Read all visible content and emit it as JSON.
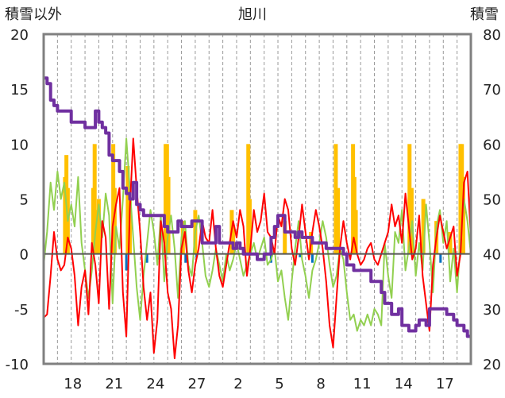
{
  "chart_data": {
    "type": "line",
    "title": "旭川",
    "ylabel_left": "積雪以外",
    "ylabel_right": "積雪",
    "ylim_left": [
      -10,
      20
    ],
    "ylim_right": [
      20,
      80
    ],
    "y_ticks_left": [
      "20",
      "15",
      "10",
      "5",
      "0",
      "-5",
      "-10"
    ],
    "y_ticks_right": [
      "80",
      "70",
      "60",
      "50",
      "40",
      "30",
      "20"
    ],
    "x_tick_labels": [
      "18",
      "21",
      "24",
      "27",
      "2",
      "5",
      "8",
      "11",
      "14",
      "17"
    ],
    "x_tick_days": [
      2,
      5,
      8,
      11,
      14,
      17,
      20,
      23,
      26,
      29
    ],
    "x_range_days": [
      0,
      31
    ],
    "grid": "vertical-dashed-daily",
    "colors": {
      "frame": "#808080",
      "grid": "#9a9a9a",
      "zero": "#555555",
      "red": "#ff0000",
      "green": "#92d050",
      "orange_bars": "#ffc000",
      "blue_bars": "#0070c0",
      "purple": "#7030a0"
    },
    "snow_bars": [
      [
        1.55,
        7
      ],
      [
        1.65,
        9
      ],
      [
        1.75,
        6
      ],
      [
        3.6,
        6
      ],
      [
        3.7,
        10
      ],
      [
        3.8,
        4
      ],
      [
        4.0,
        5
      ],
      [
        5.05,
        10
      ],
      [
        5.15,
        6
      ],
      [
        6.1,
        8
      ],
      [
        6.25,
        5
      ],
      [
        8.85,
        10
      ],
      [
        8.95,
        10
      ],
      [
        9.05,
        7
      ],
      [
        10.1,
        3
      ],
      [
        11.0,
        4
      ],
      [
        13.65,
        4
      ],
      [
        13.75,
        2.5
      ],
      [
        14.85,
        10
      ],
      [
        14.95,
        5
      ],
      [
        17.5,
        3
      ],
      [
        19.4,
        2
      ],
      [
        21.2,
        10
      ],
      [
        21.35,
        6
      ],
      [
        22.45,
        10
      ],
      [
        22.55,
        7
      ],
      [
        22.65,
        4
      ],
      [
        26.55,
        10
      ],
      [
        26.7,
        6
      ],
      [
        27.55,
        5
      ],
      [
        28.5,
        3
      ],
      [
        29.5,
        2
      ],
      [
        30.25,
        10
      ],
      [
        30.35,
        10
      ],
      [
        30.45,
        7
      ]
    ],
    "blue_bars": [
      [
        6.0,
        -1.5
      ],
      [
        7.5,
        -0.8
      ],
      [
        8.4,
        -0.5
      ],
      [
        10.3,
        -0.8
      ],
      [
        11.1,
        -0.3
      ],
      [
        16.5,
        -0.8
      ],
      [
        18.6,
        -0.3
      ],
      [
        19.5,
        -0.8
      ],
      [
        28.8,
        -0.8
      ]
    ],
    "series": [
      {
        "color": "red",
        "x": [
          0.0,
          0.25,
          0.5,
          0.75,
          1.0,
          1.25,
          1.5,
          1.75,
          2.0,
          2.25,
          2.5,
          2.75,
          3.0,
          3.25,
          3.5,
          3.75,
          4.0,
          4.25,
          4.5,
          4.75,
          5.0,
          5.25,
          5.5,
          5.75,
          6.0,
          6.25,
          6.5,
          6.75,
          7.0,
          7.25,
          7.5,
          7.75,
          8.0,
          8.25,
          8.5,
          8.75,
          9.0,
          9.25,
          9.5,
          9.75,
          10.0,
          10.25,
          10.5,
          10.75,
          11.0,
          11.25,
          11.5,
          11.75,
          12.0,
          12.25,
          12.5,
          12.75,
          13.0,
          13.25,
          13.5,
          13.75,
          14.0,
          14.25,
          14.5,
          14.75,
          15.0,
          15.25,
          15.5,
          15.75,
          16.0,
          16.25,
          16.5,
          16.75,
          17.0,
          17.25,
          17.5,
          17.75,
          18.0,
          18.25,
          18.5,
          18.75,
          19.0,
          19.25,
          19.5,
          19.75,
          20.0,
          20.25,
          20.5,
          20.75,
          21.0,
          21.25,
          21.5,
          21.75,
          22.0,
          22.25,
          22.5,
          22.75,
          23.0,
          23.25,
          23.5,
          23.75,
          24.0,
          24.25,
          24.5,
          24.75,
          25.0,
          25.25,
          25.5,
          25.75,
          26.0,
          26.25,
          26.5,
          26.75,
          27.0,
          27.25,
          27.5,
          27.75,
          28.0,
          28.25,
          28.5,
          28.75,
          29.0,
          29.25,
          29.5,
          29.75,
          30.0,
          30.25,
          30.5,
          30.75,
          31.0
        ],
        "values": [
          -5.8,
          -5.5,
          -2.0,
          2.0,
          -0.5,
          -1.5,
          -1.0,
          1.5,
          0.5,
          -2.0,
          -6.5,
          -3.0,
          -1.5,
          -5.5,
          1.0,
          -1.0,
          -4.5,
          3.0,
          1.5,
          -5.0,
          2.5,
          4.5,
          6.0,
          -3.5,
          -7.5,
          4.0,
          10.5,
          6.0,
          2.0,
          -3.0,
          -6.0,
          -3.5,
          -9.0,
          -6.0,
          3.0,
          1.0,
          -3.5,
          -5.0,
          -9.5,
          -6.5,
          0.5,
          2.0,
          -1.5,
          -3.5,
          -1.0,
          0.5,
          3.0,
          1.5,
          1.0,
          4.0,
          0.5,
          -2.0,
          -3.0,
          -1.0,
          1.0,
          3.0,
          1.5,
          4.0,
          2.5,
          -2.0,
          0.5,
          4.0,
          2.0,
          3.0,
          5.5,
          2.0,
          1.5,
          0.0,
          3.5,
          2.5,
          5.0,
          4.0,
          0.5,
          -1.0,
          1.5,
          4.5,
          2.0,
          -0.5,
          2.0,
          4.0,
          2.5,
          0.5,
          -2.5,
          -6.5,
          -8.5,
          -4.0,
          0.5,
          3.0,
          1.0,
          -0.5,
          1.5,
          0.0,
          -1.0,
          -0.5,
          0.5,
          1.0,
          -0.5,
          -1.0,
          0.0,
          1.0,
          2.0,
          4.5,
          2.5,
          3.5,
          1.0,
          5.5,
          2.5,
          -0.5,
          0.5,
          3.5,
          -2.0,
          -4.5,
          -7.0,
          -1.0,
          1.5,
          3.5,
          2.0,
          0.5,
          1.5,
          2.5,
          -2.0,
          0.0,
          6.5,
          7.5,
          1.5
        ]
      },
      {
        "color": "green",
        "x": [
          0.0,
          0.25,
          0.5,
          0.75,
          1.0,
          1.25,
          1.5,
          1.75,
          2.0,
          2.25,
          2.5,
          2.75,
          3.0,
          3.25,
          3.5,
          3.75,
          4.0,
          4.25,
          4.5,
          4.75,
          5.0,
          5.25,
          5.5,
          5.75,
          6.0,
          6.25,
          6.5,
          6.75,
          7.0,
          7.25,
          7.5,
          7.75,
          8.0,
          8.25,
          8.5,
          8.75,
          9.0,
          9.25,
          9.5,
          9.75,
          10.0,
          10.25,
          10.5,
          10.75,
          11.0,
          11.25,
          11.5,
          11.75,
          12.0,
          12.25,
          12.5,
          12.75,
          13.0,
          13.25,
          13.5,
          13.75,
          14.0,
          14.25,
          14.5,
          14.75,
          15.0,
          15.25,
          15.5,
          15.75,
          16.0,
          16.25,
          16.5,
          16.75,
          17.0,
          17.25,
          17.5,
          17.75,
          18.0,
          18.25,
          18.5,
          18.75,
          19.0,
          19.25,
          19.5,
          19.75,
          20.0,
          20.25,
          20.5,
          20.75,
          21.0,
          21.25,
          21.5,
          21.75,
          22.0,
          22.25,
          22.5,
          22.75,
          23.0,
          23.25,
          23.5,
          23.75,
          24.0,
          24.25,
          24.5,
          24.75,
          25.0,
          25.25,
          25.5,
          25.75,
          26.0,
          26.25,
          26.5,
          26.75,
          27.0,
          27.25,
          27.5,
          27.75,
          28.0,
          28.25,
          28.5,
          28.75,
          29.0,
          29.25,
          29.5,
          29.75,
          30.0,
          30.25,
          30.5,
          30.75,
          31.0
        ],
        "values": [
          -1.0,
          2.0,
          6.5,
          4.0,
          7.5,
          5.0,
          6.5,
          3.0,
          4.5,
          2.5,
          7.0,
          1.0,
          -1.5,
          -4.0,
          -1.5,
          2.0,
          4.5,
          1.5,
          5.5,
          3.5,
          -4.5,
          2.5,
          0.5,
          5.0,
          10.5,
          6.0,
          1.5,
          -3.0,
          -6.0,
          -2.0,
          1.0,
          4.0,
          2.0,
          -1.0,
          3.5,
          -2.5,
          1.5,
          3.5,
          0.5,
          -4.0,
          1.5,
          3.0,
          -1.0,
          -2.0,
          2.0,
          3.5,
          1.0,
          -2.0,
          -3.0,
          -1.5,
          0.5,
          -1.0,
          -2.5,
          0.0,
          -1.5,
          -0.5,
          1.0,
          -0.5,
          -2.0,
          -1.0,
          0.0,
          1.0,
          -0.5,
          0.5,
          1.5,
          -1.0,
          -0.5,
          0.5,
          -2.5,
          -1.5,
          -4.0,
          -6.0,
          -2.5,
          0.5,
          3.0,
          -0.5,
          -2.0,
          -4.0,
          -1.5,
          -0.5,
          1.0,
          3.0,
          1.5,
          -1.0,
          -3.0,
          -2.0,
          0.5,
          -0.5,
          -3.5,
          -6.0,
          -5.5,
          -7.0,
          -6.0,
          -6.5,
          -5.5,
          -6.5,
          -5.0,
          -5.5,
          -6.5,
          1.0,
          -2.0,
          -4.0,
          2.0,
          1.0,
          4.0,
          -1.5,
          0.5,
          3.0,
          -2.0,
          1.0,
          -1.5,
          4.5,
          1.0,
          -3.5,
          2.5,
          4.0,
          1.0,
          3.0,
          -2.5,
          0.5,
          -3.5,
          1.0,
          5.0,
          3.0,
          0.0
        ]
      },
      {
        "color": "purple",
        "axis": "right",
        "x": [
          0.0,
          0.25,
          0.5,
          0.75,
          1.0,
          1.25,
          1.5,
          1.75,
          2.0,
          2.25,
          2.5,
          2.75,
          3.0,
          3.25,
          3.5,
          3.75,
          4.0,
          4.25,
          4.5,
          4.75,
          5.0,
          5.25,
          5.5,
          5.75,
          6.0,
          6.25,
          6.5,
          6.75,
          7.0,
          7.25,
          7.5,
          7.75,
          8.0,
          8.25,
          8.5,
          8.75,
          9.0,
          9.25,
          9.5,
          9.75,
          10.0,
          10.25,
          10.5,
          10.75,
          11.0,
          11.25,
          11.5,
          11.75,
          12.0,
          12.25,
          12.5,
          12.75,
          13.0,
          13.25,
          13.5,
          13.75,
          14.0,
          14.25,
          14.5,
          14.75,
          15.0,
          15.25,
          15.5,
          15.75,
          16.0,
          16.25,
          16.5,
          16.75,
          17.0,
          17.25,
          17.5,
          17.75,
          18.0,
          18.25,
          18.5,
          18.75,
          19.0,
          19.25,
          19.5,
          19.75,
          20.0,
          20.25,
          20.5,
          20.75,
          21.0,
          21.25,
          21.5,
          21.75,
          22.0,
          22.25,
          22.5,
          22.75,
          23.0,
          23.25,
          23.5,
          23.75,
          24.0,
          24.25,
          24.5,
          24.75,
          25.0,
          25.25,
          25.5,
          25.75,
          26.0,
          26.25,
          26.5,
          26.75,
          27.0,
          27.25,
          27.5,
          27.75,
          28.0,
          28.25,
          28.5,
          28.75,
          29.0,
          29.25,
          29.5,
          29.75,
          30.0,
          30.25,
          30.5,
          30.75,
          31.0
        ],
        "values": [
          72,
          71,
          68,
          67,
          66,
          66,
          66,
          66,
          64,
          64,
          64,
          64,
          63,
          63,
          63,
          66,
          64,
          63,
          62,
          58,
          57,
          57,
          55,
          52,
          51,
          50,
          53,
          49,
          48,
          47,
          47,
          47,
          47,
          47,
          47,
          45,
          44,
          44,
          44,
          46,
          45,
          45,
          45,
          46,
          46,
          46,
          42,
          42,
          42,
          42,
          45,
          42,
          42,
          42,
          42,
          41,
          42,
          41,
          40,
          40,
          40,
          40,
          39,
          39,
          40,
          40,
          43,
          45,
          47,
          47,
          44,
          44,
          44,
          43,
          44,
          43,
          43,
          43,
          42,
          42,
          42,
          42,
          41,
          41,
          41,
          41,
          41,
          40,
          38,
          38,
          37,
          37,
          37,
          37,
          37,
          35,
          35,
          35,
          33,
          31,
          31,
          29,
          29,
          30,
          27,
          27,
          26,
          26,
          27,
          28,
          28,
          27,
          30,
          30,
          30,
          30,
          30,
          29,
          29,
          28,
          27,
          27,
          26,
          25,
          25
        ]
      }
    ]
  }
}
